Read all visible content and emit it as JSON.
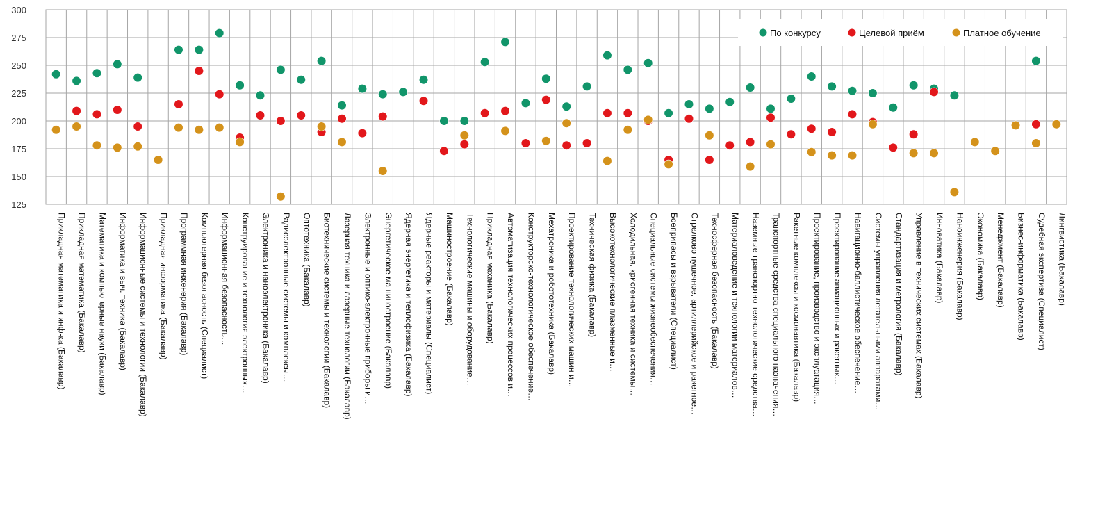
{
  "chart_data": {
    "type": "scatter",
    "ylim": [
      125,
      300
    ],
    "yticks": [
      125,
      150,
      175,
      200,
      225,
      250,
      275,
      300
    ],
    "grid": true,
    "legend_position": "top-right",
    "categories": [
      "Прикладная математика и инф-ка (Бакалавр)",
      "Прикладная математика (Бакалавр)",
      "Математика и компьютерные науки (Бакалавр)",
      "Информатика и выч. техника (Бакалавр)",
      "Информационные системы и технологии (Бакалавр)",
      "Прикладная информатика (Бакалавр)",
      "Программная инженерия (Бакалавр)",
      "Компьютерная безопасность (Специалист)",
      "Информационная безопасность…",
      "Конструирование и технология электронных…",
      "Электроника и наноэлектроника (Бакалавр)",
      "Радиоэлектронные системы и комплексы…",
      "Оптотехника (Бакалавр)",
      "Биотехнические системы и технологии (Бакалавр)",
      "Лазерная техника и лазерные технологии (Бакалавр)",
      "Электронные и оптико-электронные приборы и…",
      "Энергетическое машиностроение (Бакалавр)",
      "Ядерная энергетика и теплофизика (Бакалавр)",
      "Ядерные реакторы и материалы (Специалист)",
      "Машиностроение (Бакалавр)",
      "Технологические машины и оборудование…",
      "Прикладная механика (Бакалавр)",
      "Автоматизация технологических процессов и…",
      "Конструкторско-технологическое обеспечение…",
      "Мехатроника и робототехника (Бакалавр)",
      "Проектирование технологических машин и…",
      "Техническая физика (Бакалавр)",
      "Высокотехнологические плазменные и…",
      "Холодильная, криогенная техника и системы…",
      "Специальные системы жизнеобеспечения…",
      "Боеприпасы и взрыватели (Специалист)",
      "Стрелково-пушечное, артиллерийское и ракетное…",
      "Техносферная безопасность (Бакалавр)",
      "Материаловедение и технологии материалов…",
      "Наземные транспортно-технологические средства…",
      "Транспортные средства специального назначения…",
      "Ракетные комплексы и космонавтика (Бакалавр)",
      "Проектирование, производство и эксплуатация…",
      "Проектирование авиационных и ракетных…",
      "Навигационно-баллистическое обеспечение…",
      "Системы управления летательными аппаратами…",
      "Стандартизация и метрология (Бакалавр)",
      "Управление в технических системах (Бакалавр)",
      "Инноватика (Бакалавр)",
      "Наноинженерия (Бакалавр)",
      "Экономика (Бакалавр)",
      "Менеджмент (Бакалавр)",
      "Бизнес-информатика (Бакалавр)",
      "Судебная экспертиза (Специалист)",
      "Лингвистика (Бакалавр)"
    ],
    "series": [
      {
        "name": "По конкурсу",
        "color": "#11956A",
        "values": [
          242,
          236,
          243,
          251,
          239,
          null,
          264,
          264,
          279,
          232,
          223,
          246,
          237,
          254,
          214,
          229,
          224,
          226,
          237,
          200,
          200,
          253,
          271,
          216,
          238,
          213,
          231,
          259,
          246,
          252,
          207,
          215,
          211,
          217,
          230,
          211,
          220,
          240,
          231,
          227,
          225,
          212,
          232,
          229,
          223,
          null,
          null,
          null,
          254,
          null
        ]
      },
      {
        "name": "Целевой приём",
        "color": "#E2171B",
        "values": [
          null,
          209,
          206,
          210,
          195,
          null,
          215,
          245,
          224,
          185,
          205,
          200,
          205,
          190,
          202,
          189,
          204,
          null,
          218,
          173,
          179,
          207,
          209,
          180,
          219,
          178,
          180,
          207,
          207,
          200,
          165,
          202,
          165,
          178,
          181,
          203,
          188,
          193,
          190,
          206,
          199,
          176,
          188,
          226,
          null,
          null,
          null,
          null,
          197,
          null
        ]
      },
      {
        "name": "Платное обучение",
        "color": "#D4921B",
        "values": [
          192,
          195,
          178,
          176,
          177,
          165,
          194,
          192,
          194,
          181,
          null,
          132,
          null,
          195,
          181,
          null,
          155,
          null,
          null,
          null,
          187,
          null,
          191,
          null,
          182,
          198,
          null,
          164,
          192,
          201,
          161,
          null,
          187,
          null,
          159,
          179,
          null,
          172,
          169,
          169,
          197,
          null,
          171,
          171,
          136,
          181,
          173,
          196,
          180,
          197
        ]
      }
    ]
  }
}
